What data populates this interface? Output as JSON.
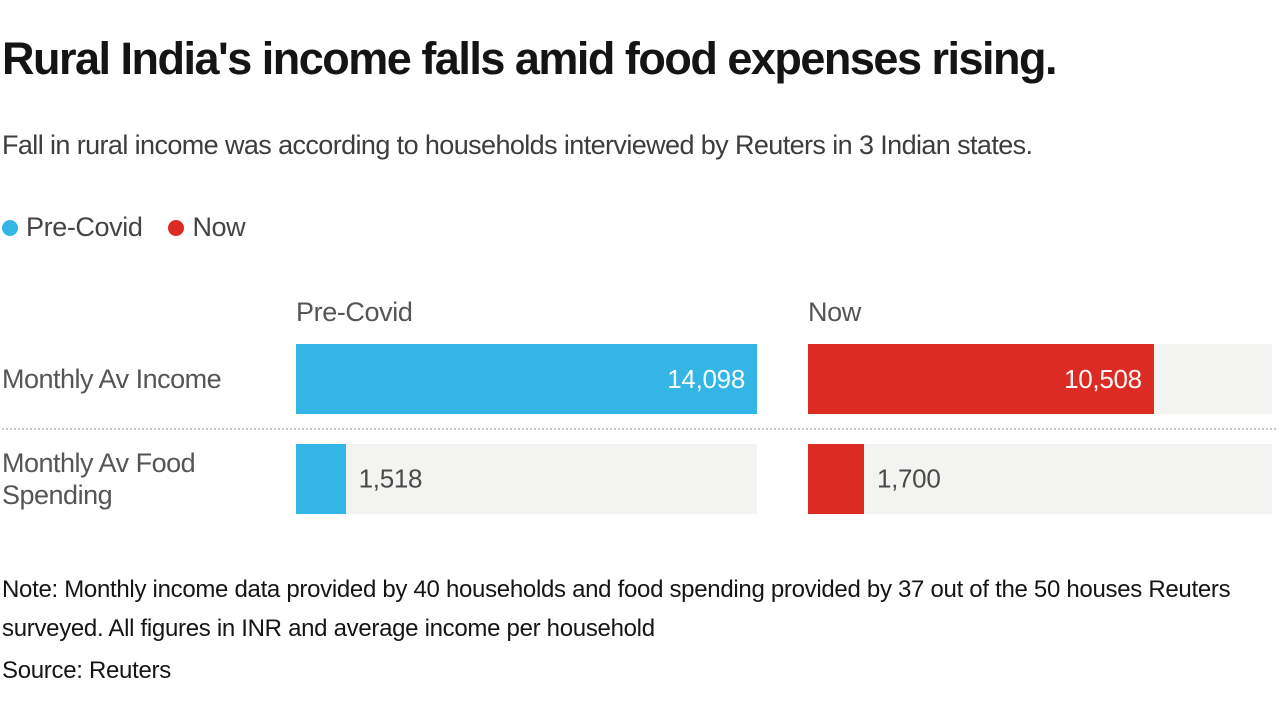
{
  "header": {
    "title": "Rural India's income falls amid food expenses rising.",
    "subtitle": "Fall in rural income was according to households interviewed by Reuters in 3 Indian states."
  },
  "legend": {
    "items": [
      {
        "label": "Pre-Covid",
        "color": "#33b5e6"
      },
      {
        "label": "Now",
        "color": "#dc2b23"
      }
    ]
  },
  "chart_data": {
    "type": "bar",
    "orientation": "horizontal",
    "title": "Rural India's income falls amid food expenses rising.",
    "categories": [
      "Monthly Av Income",
      "Monthly Av Food Spending"
    ],
    "series": [
      {
        "name": "Pre-Covid",
        "color": "#33b5e6",
        "values": [
          14098,
          1518
        ],
        "labels": [
          "14,098",
          "1,518"
        ]
      },
      {
        "name": "Now",
        "color": "#dc2b23",
        "values": [
          10508,
          1700
        ],
        "labels": [
          "10,508",
          "1,700"
        ]
      }
    ],
    "max": 14098,
    "track_color": "#f3f3f1",
    "value_inside_threshold": 0.5,
    "grid": false,
    "legend_position": "top-left"
  },
  "footer": {
    "note": "Note: Monthly income data provided by 40 households and food spending provided by 37 out of the 50 houses Reuters surveyed. All figures in INR and average income per household",
    "source": "Source: Reuters"
  }
}
